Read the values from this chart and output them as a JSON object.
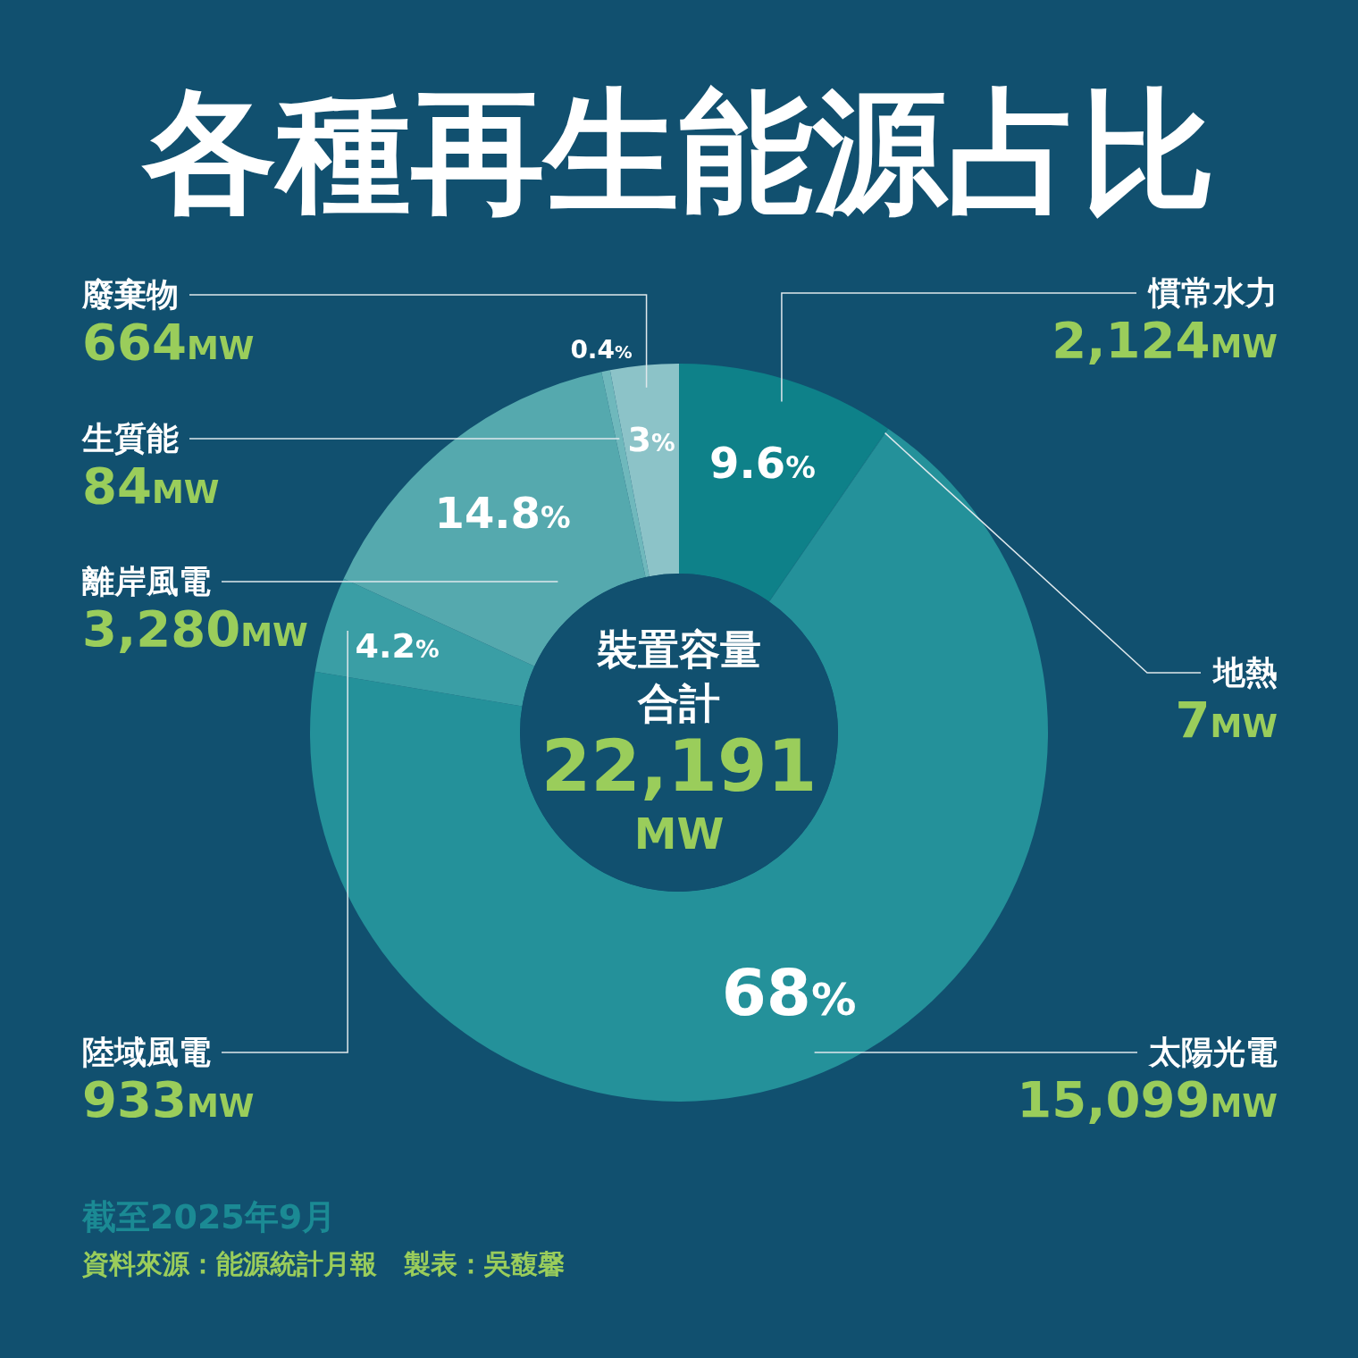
{
  "chart_data": {
    "type": "donut",
    "title": "各種再生能源占比",
    "categories": [
      "慣常水力",
      "地熱",
      "太陽光電",
      "陸域風電",
      "離岸風電",
      "生質能",
      "廢棄物"
    ],
    "values": [
      2124,
      7,
      15099,
      933,
      3280,
      84,
      664
    ],
    "value_labels": [
      "2,124MW",
      "7MW",
      "15,099MW",
      "933MW",
      "3,280MW",
      "84MW",
      "664MW"
    ],
    "colors": [
      "#0e8189",
      "#1a878f",
      "#24919a",
      "#3a9ea5",
      "#55a9ae",
      "#6fb8bc",
      "#8cc3c8"
    ],
    "annotations": [
      "裝置容量",
      "合計",
      "22,191",
      "MW",
      "截至2025年9月",
      "資料來源：能源統計月報　製表：吳馥馨",
      {
        "text": "9.6%",
        "x": "慣常水力"
      },
      {
        "text": "68%",
        "x": "太陽光電"
      },
      {
        "text": "4.2%",
        "x": "陸域風電"
      },
      {
        "text": "14.8%",
        "x": "離岸風電"
      },
      {
        "text": "0.4%",
        "x": "生質能"
      },
      {
        "text": "3%",
        "x": "廢棄物"
      }
    ]
  }
}
